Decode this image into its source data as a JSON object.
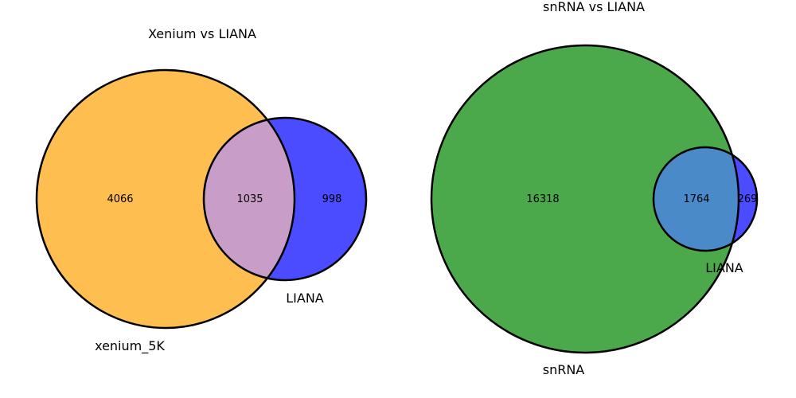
{
  "venn_diagrams": [
    {
      "title": "Xenium vs LIANA",
      "sets": [
        {
          "name": "xenium_5K",
          "color": "#ffbe50"
        },
        {
          "name": "LIANA",
          "color": "#4b4bff"
        }
      ],
      "overlap_color": "#c89ec8",
      "counts": {
        "only_a": "4066",
        "both": "1035",
        "only_b": "998"
      }
    },
    {
      "title": "snRNA vs LIANA",
      "sets": [
        {
          "name": "snRNA",
          "color": "#4ba84b"
        },
        {
          "name": "LIANA",
          "color": "#4b4bff"
        }
      ],
      "overlap_color": "#4a8ac8",
      "counts": {
        "only_a": "16318",
        "both": "1764",
        "only_b": "269"
      }
    }
  ]
}
